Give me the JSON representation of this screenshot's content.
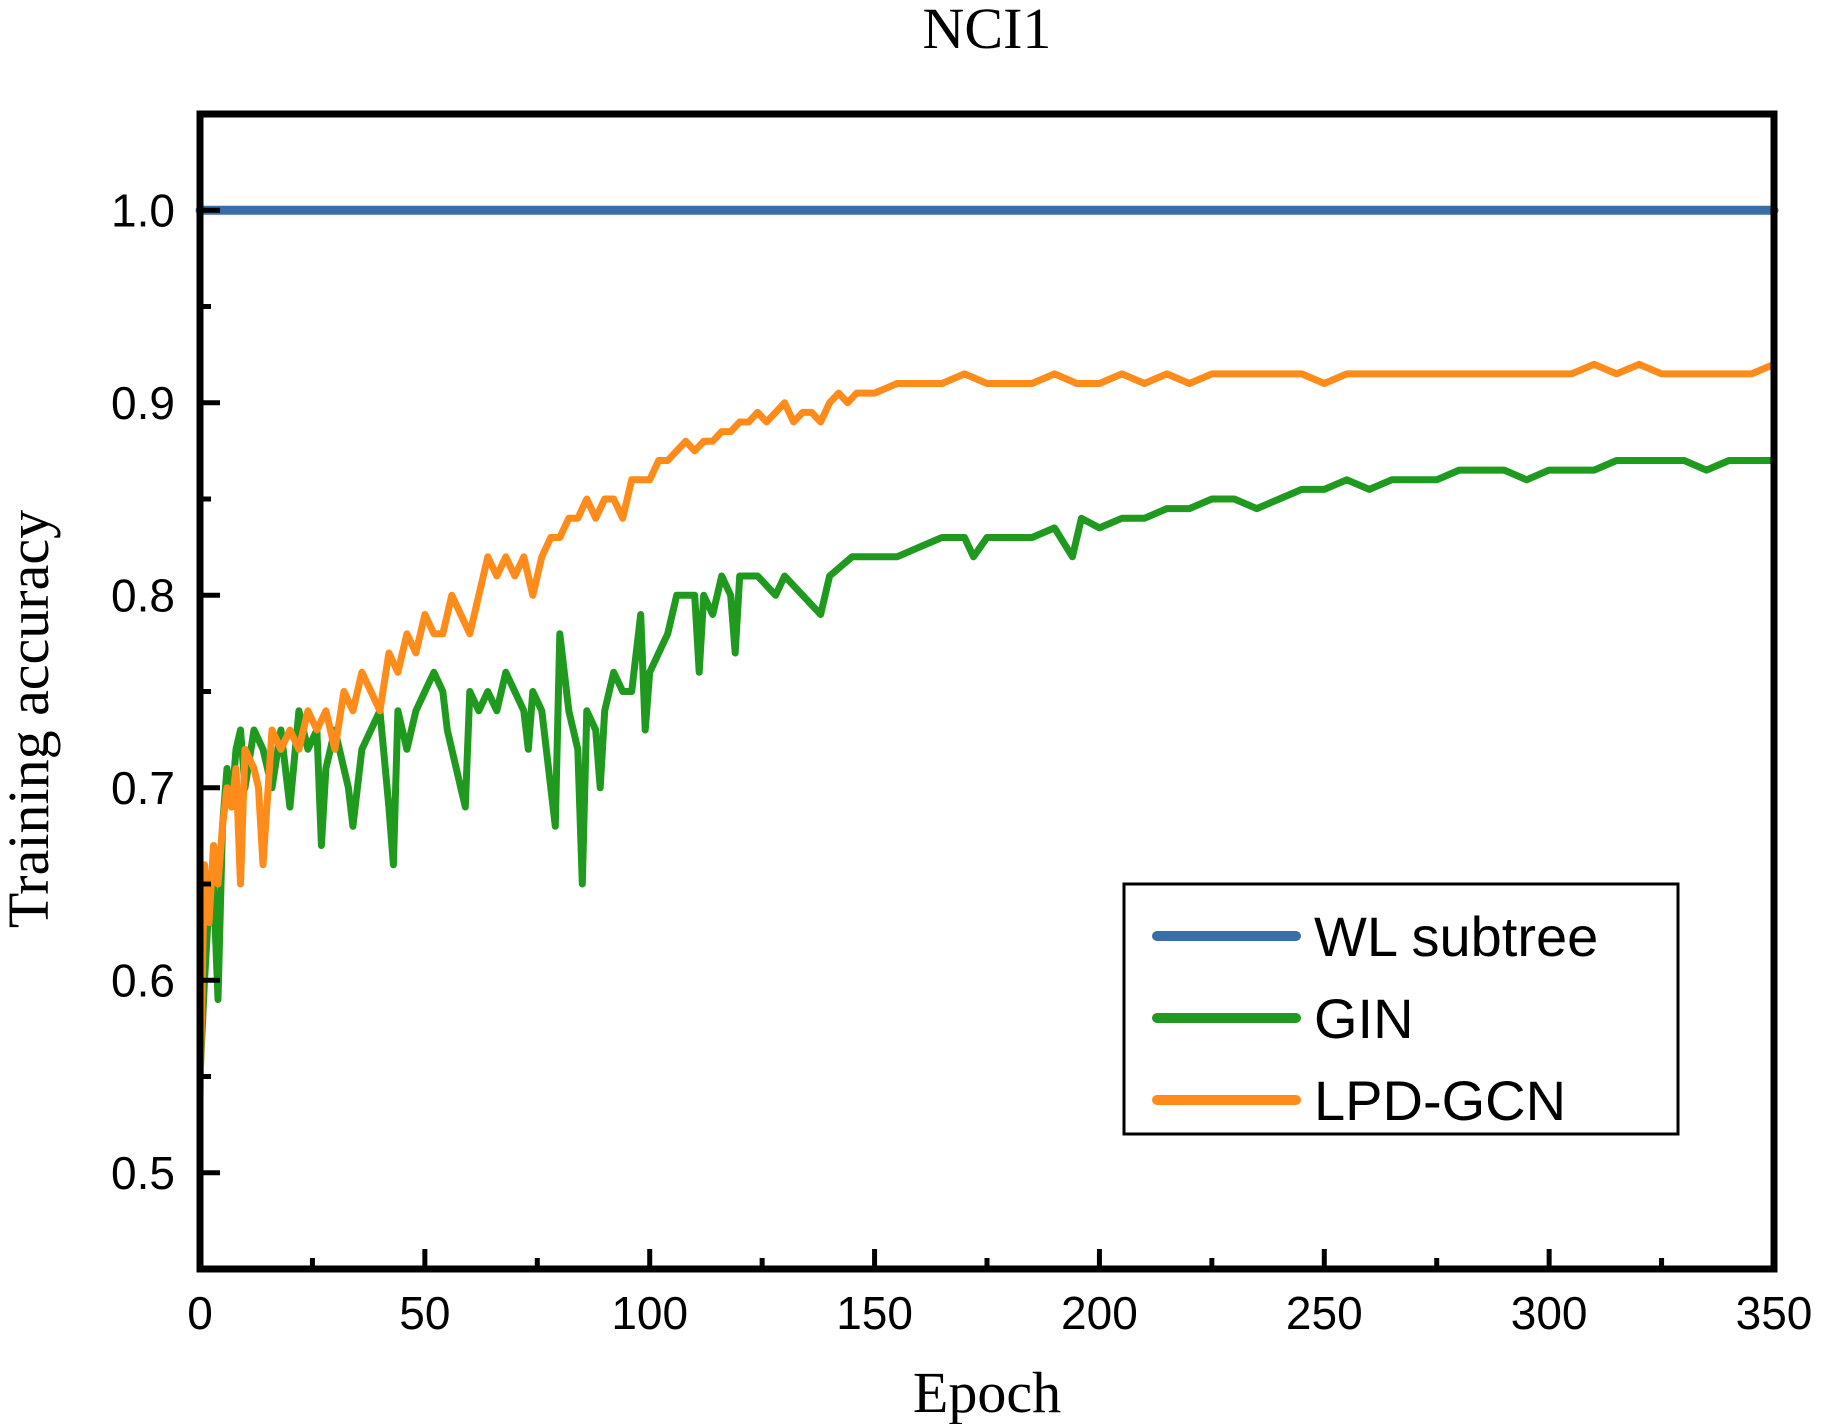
{
  "chart_data": {
    "type": "line",
    "title": "NCI1",
    "xlabel": "Epoch",
    "ylabel": "Training accuracy",
    "xlim": [
      0,
      350
    ],
    "ylim": [
      0.45,
      1.05
    ],
    "xticks": [
      0,
      50,
      100,
      150,
      200,
      250,
      300,
      350
    ],
    "xtick_labels": [
      "0",
      "50",
      "100",
      "150",
      "200",
      "250",
      "300",
      "350"
    ],
    "yticks": [
      0.5,
      0.6,
      0.7,
      0.8,
      0.9,
      1.0
    ],
    "ytick_labels": [
      "0.5",
      "0.6",
      "0.7",
      "0.8",
      "0.9",
      "1.0"
    ],
    "grid": false,
    "legend_position": "bottom-right",
    "series": [
      {
        "name": "WL subtree",
        "color": "#3a6ea8",
        "x": [
          0,
          350
        ],
        "values": [
          1.0,
          1.0
        ]
      },
      {
        "name": "GIN",
        "color": "#1f9a1f",
        "x": [
          0,
          1,
          2,
          3,
          4,
          5,
          6,
          7,
          8,
          9,
          10,
          12,
          14,
          16,
          18,
          20,
          22,
          24,
          26,
          27,
          28,
          30,
          32,
          33,
          34,
          36,
          38,
          40,
          42,
          43,
          44,
          46,
          48,
          50,
          52,
          54,
          55,
          56,
          58,
          59,
          60,
          62,
          64,
          66,
          68,
          70,
          72,
          73,
          74,
          76,
          78,
          79,
          80,
          82,
          84,
          85,
          86,
          88,
          89,
          90,
          92,
          94,
          96,
          98,
          99,
          100,
          102,
          104,
          106,
          108,
          110,
          111,
          112,
          114,
          116,
          118,
          119,
          120,
          124,
          128,
          130,
          134,
          138,
          140,
          145,
          150,
          155,
          160,
          165,
          170,
          172,
          175,
          180,
          185,
          190,
          194,
          196,
          200,
          205,
          210,
          215,
          220,
          225,
          230,
          235,
          240,
          245,
          250,
          255,
          260,
          265,
          270,
          275,
          280,
          285,
          290,
          295,
          300,
          305,
          310,
          315,
          320,
          325,
          330,
          335,
          340,
          345,
          350
        ],
        "values": [
          0.55,
          0.6,
          0.64,
          0.65,
          0.59,
          0.68,
          0.71,
          0.69,
          0.72,
          0.73,
          0.7,
          0.73,
          0.72,
          0.7,
          0.73,
          0.69,
          0.74,
          0.72,
          0.73,
          0.67,
          0.71,
          0.73,
          0.71,
          0.7,
          0.68,
          0.72,
          0.73,
          0.74,
          0.69,
          0.66,
          0.74,
          0.72,
          0.74,
          0.75,
          0.76,
          0.75,
          0.73,
          0.72,
          0.7,
          0.69,
          0.75,
          0.74,
          0.75,
          0.74,
          0.76,
          0.75,
          0.74,
          0.72,
          0.75,
          0.74,
          0.7,
          0.68,
          0.78,
          0.74,
          0.72,
          0.65,
          0.74,
          0.73,
          0.7,
          0.74,
          0.76,
          0.75,
          0.75,
          0.79,
          0.73,
          0.76,
          0.77,
          0.78,
          0.8,
          0.8,
          0.8,
          0.76,
          0.8,
          0.79,
          0.81,
          0.8,
          0.77,
          0.81,
          0.81,
          0.8,
          0.81,
          0.8,
          0.79,
          0.81,
          0.82,
          0.82,
          0.82,
          0.825,
          0.83,
          0.83,
          0.82,
          0.83,
          0.83,
          0.83,
          0.835,
          0.82,
          0.84,
          0.835,
          0.84,
          0.84,
          0.845,
          0.845,
          0.85,
          0.85,
          0.845,
          0.85,
          0.855,
          0.855,
          0.86,
          0.855,
          0.86,
          0.86,
          0.86,
          0.865,
          0.865,
          0.865,
          0.86,
          0.865,
          0.865,
          0.865,
          0.87,
          0.87,
          0.87,
          0.87,
          0.865,
          0.87,
          0.87,
          0.87
        ]
      },
      {
        "name": "LPD-GCN",
        "color": "#ff8c1a",
        "x": [
          0,
          1,
          2,
          3,
          4,
          5,
          6,
          7,
          8,
          9,
          10,
          12,
          13,
          14,
          16,
          18,
          20,
          22,
          24,
          26,
          28,
          30,
          32,
          34,
          36,
          38,
          40,
          42,
          44,
          46,
          48,
          50,
          52,
          54,
          56,
          58,
          60,
          62,
          64,
          66,
          68,
          70,
          72,
          74,
          76,
          78,
          80,
          82,
          84,
          86,
          88,
          90,
          92,
          94,
          96,
          98,
          100,
          102,
          104,
          106,
          108,
          110,
          112,
          114,
          116,
          118,
          120,
          122,
          124,
          126,
          128,
          130,
          132,
          134,
          136,
          138,
          140,
          142,
          144,
          146,
          148,
          150,
          155,
          160,
          165,
          170,
          175,
          180,
          185,
          190,
          195,
          200,
          205,
          210,
          215,
          220,
          225,
          230,
          235,
          240,
          245,
          250,
          255,
          260,
          265,
          270,
          275,
          280,
          285,
          290,
          295,
          300,
          305,
          310,
          315,
          320,
          325,
          330,
          335,
          340,
          345,
          350
        ],
        "values": [
          0.54,
          0.66,
          0.63,
          0.67,
          0.65,
          0.68,
          0.7,
          0.69,
          0.71,
          0.65,
          0.72,
          0.71,
          0.7,
          0.66,
          0.73,
          0.72,
          0.73,
          0.72,
          0.74,
          0.73,
          0.74,
          0.72,
          0.75,
          0.74,
          0.76,
          0.75,
          0.74,
          0.77,
          0.76,
          0.78,
          0.77,
          0.79,
          0.78,
          0.78,
          0.8,
          0.79,
          0.78,
          0.8,
          0.82,
          0.81,
          0.82,
          0.81,
          0.82,
          0.8,
          0.82,
          0.83,
          0.83,
          0.84,
          0.84,
          0.85,
          0.84,
          0.85,
          0.85,
          0.84,
          0.86,
          0.86,
          0.86,
          0.87,
          0.87,
          0.875,
          0.88,
          0.875,
          0.88,
          0.88,
          0.885,
          0.885,
          0.89,
          0.89,
          0.895,
          0.89,
          0.895,
          0.9,
          0.89,
          0.895,
          0.895,
          0.89,
          0.9,
          0.905,
          0.9,
          0.905,
          0.905,
          0.905,
          0.91,
          0.91,
          0.91,
          0.915,
          0.91,
          0.91,
          0.91,
          0.915,
          0.91,
          0.91,
          0.915,
          0.91,
          0.915,
          0.91,
          0.915,
          0.915,
          0.915,
          0.915,
          0.915,
          0.91,
          0.915,
          0.915,
          0.915,
          0.915,
          0.915,
          0.915,
          0.915,
          0.915,
          0.915,
          0.915,
          0.915,
          0.92,
          0.915,
          0.92,
          0.915,
          0.915,
          0.915,
          0.915,
          0.915,
          0.92
        ]
      }
    ]
  }
}
